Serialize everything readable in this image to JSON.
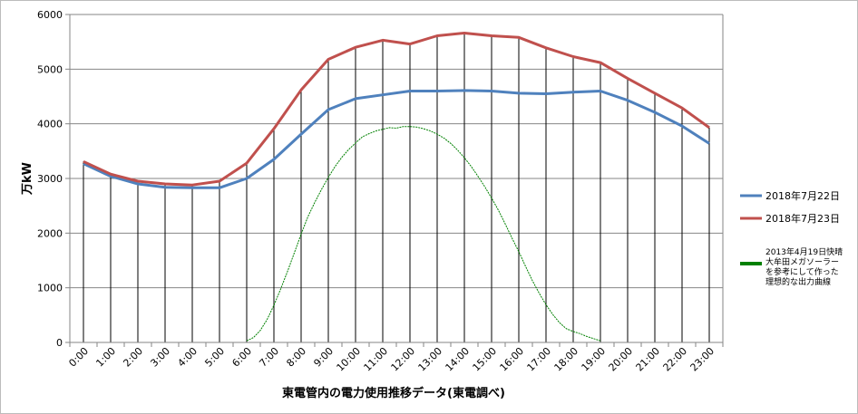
{
  "chart_data": {
    "type": "line",
    "title": "",
    "xlabel": "東電管内の電力使用推移データ(東電調べ)",
    "ylabel": "万kW",
    "ylim": [
      0,
      6000
    ],
    "yticks": [
      0,
      1000,
      2000,
      3000,
      4000,
      5000,
      6000
    ],
    "grid": "horizontal-and-vertical",
    "legend_position": "right",
    "categories": [
      "0:00",
      "1:00",
      "2:00",
      "3:00",
      "4:00",
      "5:00",
      "6:00",
      "7:00",
      "8:00",
      "9:00",
      "10:00",
      "11:00",
      "12:00",
      "13:00",
      "14:00",
      "15:00",
      "16:00",
      "17:00",
      "18:00",
      "19:00",
      "20:00",
      "21:00",
      "22:00",
      "23:00"
    ],
    "series": [
      {
        "name": "2018年7月22日",
        "color": "#4f81bd",
        "values": [
          3270,
          3040,
          2900,
          2840,
          2830,
          2830,
          3000,
          3350,
          3810,
          4260,
          4460,
          4530,
          4600,
          4600,
          4610,
          4600,
          4560,
          4550,
          4580,
          4600,
          4430,
          4210,
          3960,
          3640
        ]
      },
      {
        "name": "2018年7月23日",
        "color": "#c0504d",
        "values": [
          3310,
          3080,
          2950,
          2900,
          2880,
          2950,
          3280,
          3910,
          4620,
          5180,
          5400,
          5530,
          5460,
          5610,
          5660,
          5610,
          5580,
          5390,
          5230,
          5120,
          4830,
          4560,
          4290,
          3930
        ]
      },
      {
        "name": "2013年4月19日快晴 大牟田メガソーラーを参考にして作った理想的な出力曲線",
        "color": "#008000",
        "x": [
          6,
          6.25,
          6.5,
          6.75,
          7,
          7.25,
          7.5,
          7.75,
          8,
          8.25,
          8.5,
          8.75,
          9,
          9.25,
          9.5,
          9.75,
          10,
          10.25,
          10.5,
          10.75,
          11,
          11.25,
          11.5,
          11.75,
          12,
          12.25,
          12.5,
          12.75,
          13,
          13.25,
          13.5,
          13.75,
          14,
          14.25,
          14.5,
          14.75,
          15,
          15.25,
          15.5,
          15.75,
          16,
          16.25,
          16.5,
          16.75,
          17,
          17.25,
          17.5,
          17.75,
          18,
          18.25,
          18.5,
          18.75,
          19
        ],
        "values": [
          30,
          90,
          220,
          420,
          680,
          980,
          1300,
          1640,
          1980,
          2300,
          2560,
          2800,
          3020,
          3220,
          3390,
          3530,
          3650,
          3760,
          3820,
          3870,
          3900,
          3930,
          3920,
          3950,
          3950,
          3940,
          3910,
          3870,
          3810,
          3740,
          3640,
          3520,
          3380,
          3220,
          3040,
          2850,
          2640,
          2420,
          2170,
          1910,
          1660,
          1390,
          1130,
          900,
          690,
          510,
          360,
          250,
          200,
          160,
          110,
          70,
          30
        ]
      }
    ],
    "legend": {
      "items": [
        {
          "label": "2018年7月22日",
          "color": "#4f81bd"
        },
        {
          "label": "2018年7月23日",
          "color": "#c0504d"
        },
        {
          "label_lines": [
            "2013年4月19日快晴",
            "大牟田メガソーラー",
            "を参考にして作った",
            "理想的な出力曲線"
          ],
          "color": "#008000"
        }
      ]
    }
  }
}
